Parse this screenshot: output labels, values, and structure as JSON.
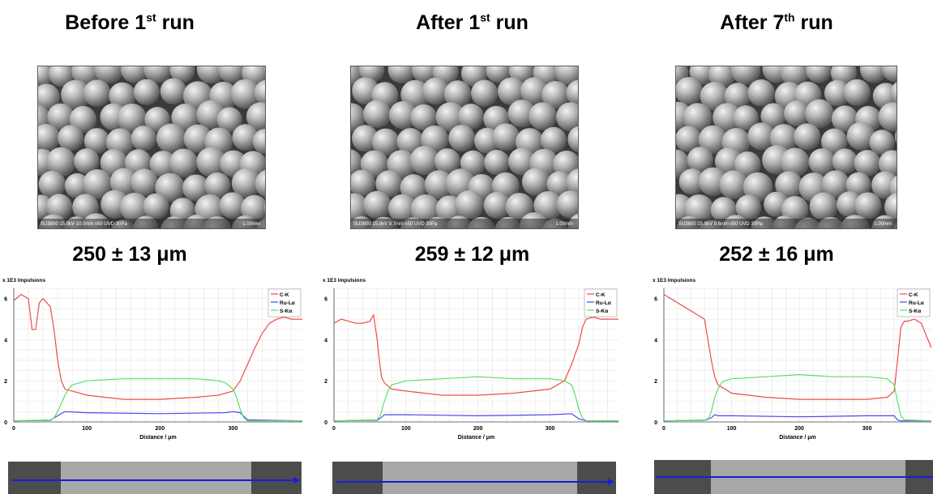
{
  "colors": {
    "c_k": "#f04a4a",
    "ru_la": "#4a4af0",
    "s_ka": "#5ae05a",
    "scan_arrow": "#1a1ae0"
  },
  "panels": [
    {
      "title_main": "Before 1",
      "title_sup": "st",
      "title_tail": " run",
      "sem_caption": "SU3800 15.0kV 10.0mm x50 UVD 30Pa",
      "sem_scale": "1.00mm",
      "size_label": "250 ± 13 μm"
    },
    {
      "title_main": "After 1",
      "title_sup": "st",
      "title_tail": " run",
      "sem_caption": "SU3800 15.0kV 9.7mm x50 UVD 30Pa",
      "sem_scale": "1.00mm",
      "size_label": "259 ± 12 μm"
    },
    {
      "title_main": "After 7",
      "title_sup": "th",
      "title_tail": " run",
      "sem_caption": "SU3800 15.0kV 9.6mm x50 UVD 30Pa",
      "sem_scale": "1.00mm",
      "size_label": "252 ± 16 μm"
    }
  ],
  "chart_data": [
    {
      "type": "line",
      "title": "",
      "ylabel": "x 1E3 Impulsions",
      "xlabel": "Distance / μm",
      "xlim": [
        0,
        395
      ],
      "ylim": [
        0,
        6.5
      ],
      "xticks": [
        0,
        100,
        200,
        300
      ],
      "yticks": [
        0,
        2,
        4,
        6
      ],
      "grid": true,
      "legend_position": "top-right",
      "series": [
        {
          "name": "C-K",
          "x": [
            0,
            10,
            20,
            25,
            30,
            35,
            40,
            45,
            50,
            55,
            60,
            65,
            70,
            80,
            100,
            150,
            200,
            250,
            280,
            300,
            310,
            320,
            330,
            340,
            350,
            360,
            370,
            380,
            395
          ],
          "y": [
            5.9,
            6.2,
            6.0,
            4.5,
            4.5,
            5.8,
            6.0,
            5.8,
            5.6,
            4.5,
            3.0,
            2.0,
            1.6,
            1.5,
            1.3,
            1.1,
            1.1,
            1.2,
            1.3,
            1.5,
            2.0,
            2.8,
            3.6,
            4.3,
            4.8,
            5.0,
            5.1,
            5.0,
            5.0
          ]
        },
        {
          "name": "Ru-Lα",
          "x": [
            0,
            50,
            60,
            70,
            100,
            200,
            290,
            300,
            310,
            320,
            395
          ],
          "y": [
            0.05,
            0.08,
            0.3,
            0.5,
            0.45,
            0.4,
            0.45,
            0.5,
            0.45,
            0.1,
            0.05
          ]
        },
        {
          "name": "S-Kα",
          "x": [
            0,
            50,
            55,
            60,
            65,
            70,
            75,
            80,
            90,
            100,
            150,
            200,
            250,
            280,
            290,
            300,
            305,
            310,
            315,
            320,
            395
          ],
          "y": [
            0.05,
            0.1,
            0.2,
            0.5,
            0.9,
            1.3,
            1.6,
            1.8,
            1.9,
            2.0,
            2.1,
            2.1,
            2.1,
            2.0,
            1.9,
            1.6,
            1.2,
            0.6,
            0.2,
            0.05,
            0.05
          ]
        }
      ]
    },
    {
      "type": "line",
      "title": "",
      "ylabel": "x 1E3 Impulsions",
      "xlabel": "Distance / μm",
      "xlim": [
        0,
        395
      ],
      "ylim": [
        0,
        6.5
      ],
      "xticks": [
        0,
        100,
        200,
        300
      ],
      "yticks": [
        0,
        2,
        4,
        6
      ],
      "grid": true,
      "legend_position": "top-right",
      "series": [
        {
          "name": "C-K",
          "x": [
            0,
            10,
            20,
            30,
            40,
            50,
            55,
            60,
            63,
            66,
            70,
            80,
            100,
            150,
            200,
            250,
            300,
            320,
            330,
            340,
            345,
            350,
            360,
            370,
            380,
            395
          ],
          "y": [
            4.8,
            5.0,
            4.9,
            4.8,
            4.8,
            4.9,
            5.2,
            4.0,
            3.0,
            2.2,
            1.9,
            1.6,
            1.5,
            1.3,
            1.3,
            1.4,
            1.6,
            2.0,
            2.8,
            3.8,
            4.6,
            5.0,
            5.1,
            5.0,
            5.0,
            5.0
          ]
        },
        {
          "name": "Ru-Lα",
          "x": [
            0,
            60,
            65,
            70,
            100,
            200,
            300,
            330,
            340,
            350,
            395
          ],
          "y": [
            0.05,
            0.08,
            0.2,
            0.35,
            0.35,
            0.3,
            0.35,
            0.4,
            0.15,
            0.05,
            0.05
          ]
        },
        {
          "name": "S-Kα",
          "x": [
            0,
            60,
            65,
            70,
            75,
            80,
            90,
            100,
            150,
            200,
            250,
            300,
            320,
            330,
            335,
            340,
            345,
            350,
            395
          ],
          "y": [
            0.05,
            0.1,
            0.4,
            1.0,
            1.5,
            1.8,
            1.9,
            2.0,
            2.1,
            2.2,
            2.1,
            2.1,
            2.0,
            1.8,
            1.3,
            0.6,
            0.2,
            0.05,
            0.05
          ]
        }
      ]
    },
    {
      "type": "line",
      "title": "",
      "ylabel": "x 1E3 Impulsions",
      "xlabel": "Distance / μm",
      "xlim": [
        0,
        395
      ],
      "ylim": [
        0,
        6.5
      ],
      "xticks": [
        0,
        100,
        200,
        300
      ],
      "yticks": [
        0,
        2,
        4,
        6
      ],
      "grid": true,
      "legend_position": "top-right",
      "series": [
        {
          "name": "C-K",
          "x": [
            0,
            10,
            20,
            30,
            40,
            50,
            60,
            65,
            70,
            75,
            80,
            90,
            100,
            150,
            200,
            250,
            300,
            330,
            340,
            345,
            350,
            355,
            360,
            370,
            380,
            390,
            395
          ],
          "y": [
            6.2,
            6.0,
            5.8,
            5.6,
            5.4,
            5.2,
            5.0,
            4.0,
            3.0,
            2.2,
            1.8,
            1.6,
            1.4,
            1.2,
            1.1,
            1.1,
            1.1,
            1.2,
            1.5,
            3.0,
            4.6,
            4.9,
            4.9,
            5.0,
            4.8,
            4.0,
            3.6
          ]
        },
        {
          "name": "Ru-Lα",
          "x": [
            0,
            60,
            70,
            75,
            80,
            100,
            200,
            300,
            340,
            345,
            350,
            395
          ],
          "y": [
            0.05,
            0.08,
            0.2,
            0.35,
            0.3,
            0.3,
            0.25,
            0.3,
            0.3,
            0.1,
            0.05,
            0.05
          ]
        },
        {
          "name": "S-Kα",
          "x": [
            0,
            65,
            70,
            75,
            80,
            85,
            90,
            100,
            150,
            200,
            250,
            300,
            330,
            340,
            345,
            350,
            355,
            395
          ],
          "y": [
            0.05,
            0.1,
            0.5,
            1.2,
            1.6,
            1.9,
            2.0,
            2.1,
            2.2,
            2.3,
            2.2,
            2.2,
            2.1,
            1.8,
            1.0,
            0.3,
            0.1,
            0.05
          ]
        }
      ]
    }
  ]
}
